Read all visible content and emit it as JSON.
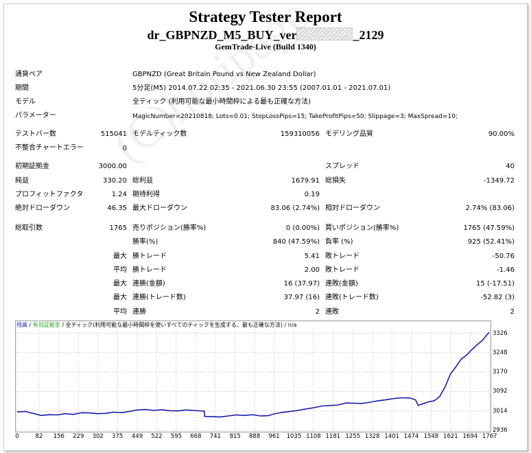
{
  "report": {
    "title": "Strategy Tester Report",
    "ea_prefix": "dr_GBPNZD_M5_BUY_ver",
    "ea_suffix": "_2129",
    "server": "GemTrade-Live (Build 1340)"
  },
  "info": {
    "symbol_label": "通貨ペア",
    "symbol_value": "GBPNZD (Great Britain Pound vs New Zealand Dollar)",
    "period_label": "期間",
    "period_value": "5分足(M5) 2014.07.22 02:35 - 2021.06.30 23:55 (2007.01.01 - 2021.07.01)",
    "model_label": "モデル",
    "model_value": "全ティック (利用可能な最小時間枠による最も正確な方法)",
    "params_label": "パラメーター",
    "params_value": "MagicNumber=20210818; Lots=0.01; StopLossPips=15; TakeProfitPips=50; Slippage=3; MaxSpread=10;"
  },
  "stats": {
    "bars_label": "テストバー数",
    "bars_value": "515041",
    "ticks_label": "モデルティック数",
    "ticks_value": "159310056",
    "quality_label": "モデリング品質",
    "quality_value": "90.00%",
    "mismatch_label": "不整合チャートエラー",
    "mismatch_value": "0",
    "deposit_label": "初期証拠金",
    "deposit_value": "3000.00",
    "spread_label": "スプレッド",
    "spread_value": "40",
    "net_label": "純益",
    "net_value": "330.20",
    "gross_profit_label": "総利益",
    "gross_profit_value": "1679.91",
    "gross_loss_label": "総損失",
    "gross_loss_value": "-1349.72",
    "pf_label": "プロフィットファクタ",
    "pf_value": "1.24",
    "expected_label": "期待利得",
    "expected_value": "0.19",
    "abs_dd_label": "絶対ドローダウン",
    "abs_dd_value": "46.35",
    "max_dd_label": "最大ドローダウン",
    "max_dd_value": "83.06 (2.74%)",
    "rel_dd_label": "相対ドローダウン",
    "rel_dd_value": "2.74% (83.06)",
    "trades_label": "総取引数",
    "trades_value": "1765",
    "short_label": "売りポジション(勝率%)",
    "short_value": "0 (0.00%)",
    "long_label": "買いポジション(勝率%)",
    "long_value": "1765 (47.59%)",
    "win_label": "勝率(%)",
    "win_value": "840 (47.59%)",
    "loss_label": "負率 (%)",
    "loss_value": "925 (52.41%)",
    "max_word": "最大",
    "avg_word": "平均",
    "largest_win_label": "勝トレード",
    "largest_win_value": "5.41",
    "largest_loss_label": "敗トレード",
    "largest_loss_value": "-50.76",
    "avg_win_label": "勝トレード",
    "avg_win_value": "2.00",
    "avg_loss_label": "敗トレード",
    "avg_loss_value": "-1.46",
    "cons_win_amt_label": "連勝(金額)",
    "cons_win_amt_value": "16 (37.97)",
    "cons_loss_amt_label": "連敗(金額)",
    "cons_loss_amt_value": "15 (-17.51)",
    "cons_win_trades_label": "連勝(トレード数)",
    "cons_win_trades_value": "37.97 (16)",
    "cons_loss_trades_label": "連敗(トレード数)",
    "cons_loss_trades_value": "-52.82 (3)",
    "avg_cons_win_label": "連勝",
    "avg_cons_win_value": "2",
    "avg_cons_loss_label": "連敗",
    "avg_cons_loss_value": "2"
  },
  "legend": {
    "balance": "残高",
    "sep1": " / ",
    "equity": "有効証拠金",
    "sep2": " / ",
    "model": "全ティック(利用可能な最小時間枠を使いすべてのティックを生成する、最も正確な方法)",
    "sep3": " / ",
    "na": "n/a"
  },
  "watermark": "(C)horipage",
  "colors": {
    "balance": "#1a1aa8",
    "equity": "#2e9e2e",
    "grid": "#d4d4d4"
  },
  "chart_data": {
    "type": "line",
    "x_ticks": [
      0,
      82,
      156,
      229,
      302,
      375,
      449,
      522,
      595,
      668,
      741,
      815,
      888,
      961,
      1035,
      1108,
      1181,
      1255,
      1328,
      1401,
      1474,
      1548,
      1621,
      1694,
      1767
    ],
    "y_ticks": [
      3326,
      3248,
      3170,
      3092,
      3014,
      2936
    ],
    "xlim": [
      0,
      1765
    ],
    "ylim": [
      2936,
      3336
    ],
    "series": [
      {
        "name": "残高",
        "x": [
          0,
          30,
          60,
          90,
          120,
          150,
          180,
          210,
          240,
          270,
          300,
          330,
          360,
          390,
          420,
          450,
          480,
          510,
          540,
          570,
          600,
          630,
          660,
          700,
          701,
          730,
          760,
          790,
          820,
          850,
          880,
          910,
          940,
          960,
          990,
          1020,
          1050,
          1080,
          1110,
          1140,
          1170,
          1200,
          1230,
          1260,
          1290,
          1320,
          1350,
          1380,
          1410,
          1440,
          1470,
          1490,
          1500,
          1520,
          1540,
          1560,
          1580,
          1600,
          1620,
          1640,
          1660,
          1680,
          1700,
          1720,
          1740,
          1750,
          1765
        ],
        "values": [
          3010,
          3012,
          3004,
          2996,
          2999,
          2998,
          3003,
          3000,
          3007,
          3006,
          3003,
          3004,
          3009,
          3007,
          3012,
          3018,
          3020,
          3016,
          3019,
          3015,
          3014,
          3018,
          3016,
          3013,
          2992,
          2991,
          2990,
          2994,
          2998,
          2996,
          2999,
          2994,
          2995,
          3002,
          3008,
          3012,
          3016,
          3022,
          3027,
          3034,
          3036,
          3038,
          3046,
          3045,
          3044,
          3049,
          3055,
          3059,
          3064,
          3067,
          3066,
          3058,
          3036,
          3044,
          3051,
          3055,
          3072,
          3110,
          3162,
          3191,
          3222,
          3238,
          3260,
          3280,
          3298,
          3312,
          3330
        ]
      }
    ]
  }
}
